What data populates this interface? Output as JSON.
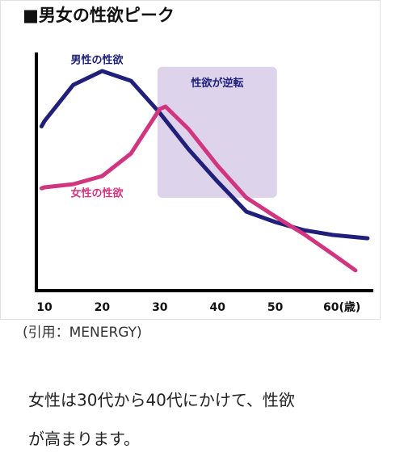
{
  "chart_data": {
    "type": "line",
    "title": "■男女の性欲ピーク",
    "xlim": [
      8.6,
      67
    ],
    "ylim": [
      0,
      100
    ],
    "xticks": [
      10,
      20,
      30,
      40,
      50,
      {
        "value": 60,
        "label": "60(歳)"
      }
    ],
    "series": [
      {
        "name": "男性の性欲",
        "color": "#20207a",
        "x": [
          9.5,
          10,
          15,
          20,
          25,
          30,
          35,
          40,
          45,
          50,
          55,
          60,
          66
        ],
        "values": [
          69,
          71.2,
          86.4,
          92.2,
          88.1,
          74.6,
          59.3,
          45.8,
          33.2,
          28.8,
          25.4,
          23.4,
          22
        ]
      },
      {
        "name": "女性の性欲",
        "color": "#d2357f",
        "x": [
          9.5,
          10,
          15,
          20,
          25,
          30,
          31,
          35,
          40,
          45,
          50,
          55,
          60,
          63.9
        ],
        "values": [
          43,
          43.4,
          44.7,
          48.1,
          57.6,
          76.3,
          77.3,
          67.8,
          52.5,
          39,
          31.2,
          23.7,
          15.3,
          8.5
        ]
      }
    ],
    "highlight": {
      "label": "性欲が逆転",
      "x": [
        29.6,
        50.3
      ],
      "y": [
        39,
        94
      ],
      "color": "#ddd3ea"
    }
  },
  "source": "(引用：MENERGY)",
  "caption": [
    "女性は30代から40代にかけて、性欲",
    "が高まります。"
  ]
}
